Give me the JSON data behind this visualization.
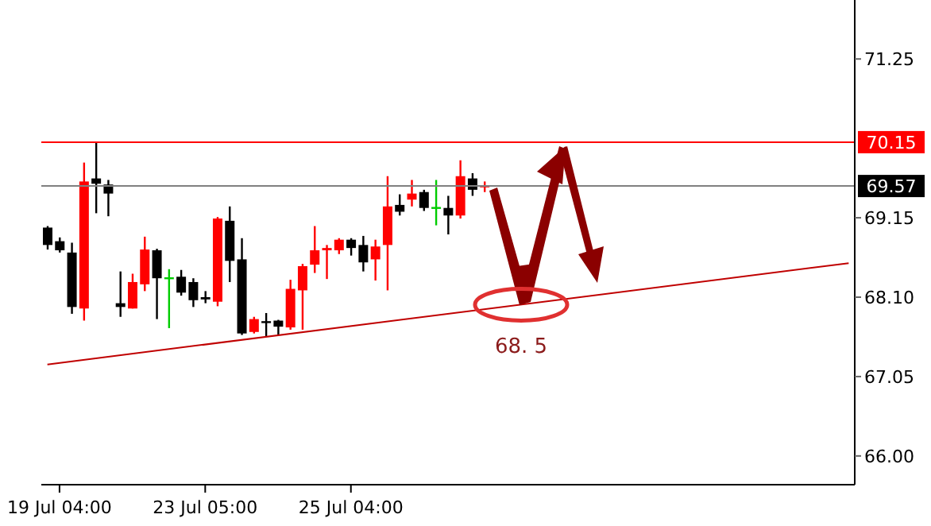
{
  "chart_data": {
    "type": "candlestick",
    "categories": [
      null,
      "19 Jul 04:00",
      null,
      null,
      null,
      null,
      null,
      null,
      null,
      null,
      null,
      null,
      null,
      "23 Jul 05:00",
      null,
      null,
      null,
      null,
      null,
      null,
      null,
      null,
      null,
      null,
      null,
      "25 Jul 04:00",
      null,
      null,
      null,
      null,
      null,
      null,
      null,
      null,
      null,
      null,
      null,
      null,
      null,
      null,
      null,
      null,
      null,
      null,
      null,
      null,
      null,
      null,
      null,
      null,
      null,
      null,
      null,
      null,
      null,
      null,
      null,
      null,
      null,
      null,
      null,
      null,
      null,
      null,
      null,
      null,
      null
    ],
    "ohlc": [
      [
        69.02,
        69.04,
        68.73,
        68.79
      ],
      [
        68.84,
        68.89,
        68.69,
        68.72
      ],
      [
        68.69,
        68.82,
        67.88,
        67.97
      ],
      [
        67.95,
        69.88,
        67.79,
        69.63
      ],
      [
        69.67,
        70.15,
        69.21,
        69.6
      ],
      [
        69.59,
        69.65,
        69.17,
        69.47
      ],
      [
        68.02,
        68.44,
        67.84,
        67.97
      ],
      [
        67.95,
        68.41,
        67.95,
        68.3
      ],
      [
        68.27,
        68.9,
        68.18,
        68.73
      ],
      [
        68.72,
        68.74,
        67.81,
        68.35
      ],
      [
        68.35,
        68.47,
        67.69,
        68.35
      ],
      [
        68.37,
        68.46,
        68.12,
        68.16
      ],
      [
        68.3,
        68.35,
        67.97,
        68.06
      ],
      [
        68.1,
        68.18,
        68.02,
        68.07
      ],
      [
        68.04,
        69.16,
        67.98,
        69.14
      ],
      [
        69.11,
        69.3,
        68.3,
        68.58
      ],
      [
        68.6,
        68.88,
        67.6,
        67.62
      ],
      [
        67.64,
        67.84,
        67.62,
        67.81
      ],
      [
        67.78,
        67.89,
        67.58,
        67.76
      ],
      [
        67.79,
        67.8,
        67.6,
        67.71
      ],
      [
        67.7,
        68.33,
        67.67,
        68.21
      ],
      [
        68.19,
        68.54,
        67.67,
        68.51
      ],
      [
        68.53,
        69.04,
        68.42,
        68.72
      ],
      [
        68.72,
        68.79,
        68.34,
        68.75
      ],
      [
        68.72,
        68.88,
        68.67,
        68.86
      ],
      [
        68.86,
        68.88,
        68.65,
        68.75
      ],
      [
        68.79,
        68.91,
        68.44,
        68.56
      ],
      [
        68.6,
        68.86,
        68.32,
        68.77
      ],
      [
        68.79,
        69.7,
        68.19,
        69.3
      ],
      [
        69.32,
        69.46,
        69.18,
        69.23
      ],
      [
        69.39,
        69.65,
        69.3,
        69.47
      ],
      [
        69.49,
        69.52,
        69.24,
        69.28
      ],
      [
        69.28,
        69.65,
        69.05,
        69.28
      ],
      [
        69.28,
        69.44,
        68.93,
        69.18
      ],
      [
        69.18,
        69.91,
        69.14,
        69.7
      ],
      [
        69.67,
        69.74,
        69.44,
        69.52
      ],
      [
        69.56,
        69.63,
        69.49,
        69.57
      ],
      null,
      null,
      null,
      null,
      null,
      null,
      null,
      null,
      null,
      null,
      null,
      null,
      null,
      null,
      null,
      null,
      null,
      null,
      null,
      null,
      null,
      null,
      null,
      null,
      null,
      null,
      null,
      null,
      null,
      null
    ],
    "colors": [
      "#000000",
      "#000000",
      "#000000",
      "#ff0000",
      "#000000",
      "#000000",
      "#000000",
      "#ff0000",
      "#ff0000",
      "#000000",
      "#00cc00",
      "#000000",
      "#000000",
      "#000000",
      "#ff0000",
      "#000000",
      "#000000",
      "#ff0000",
      "#000000",
      "#000000",
      "#ff0000",
      "#ff0000",
      "#ff0000",
      "#ff0000",
      "#ff0000",
      "#000000",
      "#000000",
      "#ff0000",
      "#ff0000",
      "#000000",
      "#ff0000",
      "#000000",
      "#00cc00",
      "#000000",
      "#ff0000",
      "#000000",
      "#ff0000",
      null,
      null,
      null,
      null,
      null,
      null,
      null,
      null,
      null,
      null,
      null,
      null,
      null,
      null,
      null,
      null,
      null,
      null,
      null,
      null,
      null,
      null,
      null,
      null,
      null,
      null,
      null,
      null,
      null,
      null
    ],
    "series": [
      {
        "type": "line",
        "color": "#c00000",
        "values": [
          67.21,
          null,
          null,
          null,
          null,
          null,
          null,
          null,
          null,
          null,
          null,
          null,
          null,
          null,
          null,
          null,
          null,
          null,
          null,
          null,
          null,
          null,
          null,
          null,
          null,
          null,
          null,
          null,
          null,
          null,
          null,
          null,
          null,
          null,
          null,
          null,
          null,
          null,
          null,
          null,
          null,
          null,
          null,
          null,
          null,
          null,
          null,
          null,
          null,
          null,
          null,
          null,
          null,
          null,
          null,
          null,
          null,
          null,
          null,
          null,
          null,
          null,
          null,
          null,
          null,
          null,
          68.55
        ]
      }
    ],
    "ylim": [
      65.62,
      72.03
    ],
    "yticks": [
      71.25,
      69.15,
      {
        "value": 68.1,
        "label": "68.10"
      },
      67.05,
      {
        "value": 66,
        "label": "66.00"
      }
    ],
    "ref_lines": [
      {
        "axis": "y",
        "value": 70.15,
        "label": "70.15",
        "color": "#ff0000"
      },
      {
        "axis": "y",
        "value": 69.57,
        "label": "69.57",
        "color": "#808080"
      }
    ],
    "annotations": [
      {
        "text": "68. 5",
        "y": 68.0
      }
    ]
  }
}
